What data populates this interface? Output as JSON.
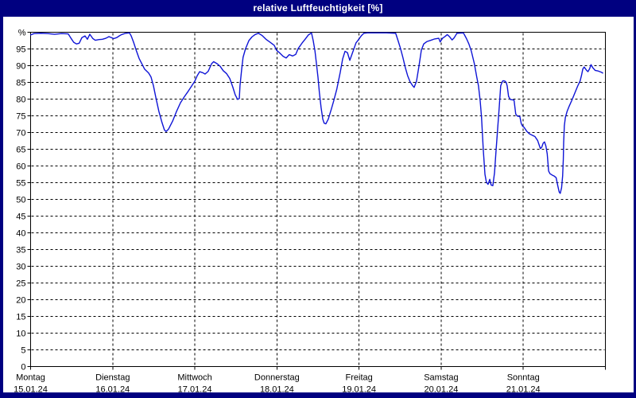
{
  "window": {
    "title": "relative Luftfeuchtigkeit [%]"
  },
  "colors": {
    "frame": "#000080",
    "titlebar_text": "#ffffff",
    "plot_background": "#ffffff",
    "axis": "#000000",
    "grid": "#000000",
    "series_line": "#0e14d6"
  },
  "chart_data": {
    "type": "line",
    "title": "relative Luftfeuchtigkeit [%]",
    "ylabel": "%",
    "ylim": [
      0,
      100
    ],
    "y_tick_step": 5,
    "y_top_label": "%",
    "y_tick_labels": [
      "%",
      "95",
      "90",
      "85",
      "80",
      "75",
      "70",
      "65",
      "60",
      "55",
      "50",
      "45",
      "40",
      "35",
      "30",
      "25",
      "20",
      "15",
      "10",
      "5",
      "0"
    ],
    "grid": "dashed",
    "legend_position": "none",
    "x_axis": {
      "unit": "hours",
      "range_hours": [
        0,
        168
      ],
      "day_ticks": [
        {
          "name": "Montag",
          "date": "15.01.24"
        },
        {
          "name": "Dienstag",
          "date": "16.01.24"
        },
        {
          "name": "Mittwoch",
          "date": "17.01.24"
        },
        {
          "name": "Donnerstag",
          "date": "18.01.24"
        },
        {
          "name": "Freitag",
          "date": "19.01.24"
        },
        {
          "name": "Samstag",
          "date": "20.01.24"
        },
        {
          "name": "Sonntag",
          "date": "21.01.24"
        }
      ]
    },
    "series": [
      {
        "name": "relative Luftfeuchtigkeit",
        "unit": "%",
        "color": "#0e14d6",
        "points_hours_value": [
          [
            0,
            99.2
          ],
          [
            1,
            99.6
          ],
          [
            3,
            99.7
          ],
          [
            5,
            99.6
          ],
          [
            7,
            99.4
          ],
          [
            9,
            99.6
          ],
          [
            11,
            99.5
          ],
          [
            11.8,
            98.2
          ],
          [
            12.6,
            97
          ],
          [
            13.4,
            96.5
          ],
          [
            14.2,
            96.7
          ],
          [
            15,
            98.4
          ],
          [
            15.9,
            98.9
          ],
          [
            16.6,
            97.9
          ],
          [
            17.3,
            99.4
          ],
          [
            18.2,
            98.1
          ],
          [
            18.9,
            97.6
          ],
          [
            20,
            97.8
          ],
          [
            21,
            97.9
          ],
          [
            22,
            98.2
          ],
          [
            22.9,
            98.7
          ],
          [
            23.6,
            98.4
          ],
          [
            24.3,
            98.1
          ],
          [
            25.2,
            98.4
          ],
          [
            25.9,
            98.9
          ],
          [
            26.6,
            99.3
          ],
          [
            27.8,
            99.7
          ],
          [
            28.9,
            99.8
          ],
          [
            29.4,
            98.9
          ],
          [
            30.1,
            97
          ],
          [
            30.8,
            94.8
          ],
          [
            31.7,
            92.2
          ],
          [
            32.4,
            90.8
          ],
          [
            33.3,
            89
          ],
          [
            34.5,
            87.8
          ],
          [
            35.2,
            86.6
          ],
          [
            35.9,
            84
          ],
          [
            36.6,
            80.5
          ],
          [
            37.5,
            76.3
          ],
          [
            38.4,
            73
          ],
          [
            39.1,
            70.8
          ],
          [
            39.6,
            70.3
          ],
          [
            40.3,
            71
          ],
          [
            41.5,
            73.4
          ],
          [
            42.6,
            76.2
          ],
          [
            43.8,
            78.9
          ],
          [
            45,
            80.8
          ],
          [
            46.1,
            82.4
          ],
          [
            47,
            83.8
          ],
          [
            48,
            85.4
          ],
          [
            48.7,
            87
          ],
          [
            49.4,
            88.2
          ],
          [
            50.3,
            87.9
          ],
          [
            51,
            87.5
          ],
          [
            51.9,
            88.3
          ],
          [
            52.9,
            90.6
          ],
          [
            53.5,
            91.2
          ],
          [
            54.5,
            90.6
          ],
          [
            55.4,
            89.8
          ],
          [
            56.3,
            88.5
          ],
          [
            57.3,
            87.6
          ],
          [
            58.2,
            86.2
          ],
          [
            59.1,
            83.6
          ],
          [
            59.8,
            81.3
          ],
          [
            60.5,
            79.9
          ],
          [
            61,
            80.2
          ],
          [
            61.2,
            84
          ],
          [
            61.7,
            89
          ],
          [
            62.1,
            92.5
          ],
          [
            62.8,
            95
          ],
          [
            63.8,
            97.5
          ],
          [
            64.7,
            98.6
          ],
          [
            65.6,
            99.3
          ],
          [
            66.6,
            99.7
          ],
          [
            67.7,
            99
          ],
          [
            68.9,
            97.8
          ],
          [
            70,
            97
          ],
          [
            71.2,
            96.1
          ],
          [
            71.9,
            94.6
          ],
          [
            72.8,
            93.8
          ],
          [
            73.8,
            92.8
          ],
          [
            74.7,
            92.3
          ],
          [
            75.6,
            93.3
          ],
          [
            76.6,
            92.9
          ],
          [
            77.5,
            93.4
          ],
          [
            78.2,
            95.1
          ],
          [
            79.3,
            96.7
          ],
          [
            80.3,
            98
          ],
          [
            81.2,
            99.2
          ],
          [
            82.1,
            99.8
          ],
          [
            82.6,
            97.5
          ],
          [
            83.1,
            94.5
          ],
          [
            83.5,
            91
          ],
          [
            84,
            86.5
          ],
          [
            84.4,
            82
          ],
          [
            84.9,
            77.5
          ],
          [
            85.4,
            74
          ],
          [
            85.8,
            72.8
          ],
          [
            86.3,
            72.6
          ],
          [
            87,
            74
          ],
          [
            87.9,
            77
          ],
          [
            88.6,
            79.5
          ],
          [
            89.5,
            83
          ],
          [
            90.5,
            88
          ],
          [
            91.2,
            92
          ],
          [
            91.9,
            94.3
          ],
          [
            92.6,
            93.9
          ],
          [
            93.3,
            91.6
          ],
          [
            94.2,
            94.2
          ],
          [
            95.1,
            96.8
          ],
          [
            96,
            98
          ],
          [
            96.7,
            99
          ],
          [
            97.4,
            99.7
          ],
          [
            98.4,
            99.8
          ],
          [
            101,
            99.8
          ],
          [
            104,
            99.8
          ],
          [
            106.7,
            99.7
          ],
          [
            107.4,
            97.5
          ],
          [
            108.1,
            95.2
          ],
          [
            108.8,
            92.5
          ],
          [
            109.5,
            89.5
          ],
          [
            110.2,
            87
          ],
          [
            110.9,
            85.2
          ],
          [
            111.6,
            84.1
          ],
          [
            112.1,
            83.5
          ],
          [
            112.8,
            85.4
          ],
          [
            113.5,
            89.8
          ],
          [
            114.2,
            94.6
          ],
          [
            114.9,
            96.5
          ],
          [
            115.8,
            97.2
          ],
          [
            117,
            97.6
          ],
          [
            118.1,
            98
          ],
          [
            119.3,
            98.2
          ],
          [
            119.7,
            97.1
          ],
          [
            120.4,
            98.2
          ],
          [
            121.1,
            98.7
          ],
          [
            121.8,
            99.3
          ],
          [
            122.5,
            98.6
          ],
          [
            123.2,
            97.7
          ],
          [
            123.7,
            98.2
          ],
          [
            124.2,
            99
          ],
          [
            124.6,
            99.7
          ],
          [
            126.5,
            99.8
          ],
          [
            127.4,
            98.1
          ],
          [
            128.1,
            96.5
          ],
          [
            128.8,
            94.4
          ],
          [
            129.7,
            90.6
          ],
          [
            130.4,
            86.6
          ],
          [
            130.9,
            84
          ],
          [
            131.4,
            79.5
          ],
          [
            131.8,
            74.5
          ],
          [
            132.3,
            65
          ],
          [
            132.8,
            57.5
          ],
          [
            133.2,
            55.2
          ],
          [
            133.7,
            54.5
          ],
          [
            134.2,
            56
          ],
          [
            134.6,
            54.3
          ],
          [
            135.1,
            54.1
          ],
          [
            135.6,
            58
          ],
          [
            136,
            64
          ],
          [
            136.5,
            71
          ],
          [
            137,
            78
          ],
          [
            137.4,
            84
          ],
          [
            137.9,
            85.3
          ],
          [
            138.1,
            85.5
          ],
          [
            138.6,
            85.4
          ],
          [
            139,
            85
          ],
          [
            139.3,
            83.9
          ],
          [
            139.7,
            80.8
          ],
          [
            140.2,
            79.9
          ],
          [
            141.3,
            79.7
          ],
          [
            141.8,
            75.5
          ],
          [
            142.3,
            74.9
          ],
          [
            143,
            74.8
          ],
          [
            143.4,
            72.7
          ],
          [
            143.8,
            71.9
          ],
          [
            144.2,
            71.6
          ],
          [
            145,
            70.4
          ],
          [
            145.8,
            69.6
          ],
          [
            146.6,
            69.2
          ],
          [
            147.4,
            68.8
          ],
          [
            148.2,
            67.6
          ],
          [
            148.6,
            66.4
          ],
          [
            149,
            65.2
          ],
          [
            149.4,
            65.6
          ],
          [
            149.8,
            66.8
          ],
          [
            150.2,
            67.2
          ],
          [
            150.6,
            66
          ],
          [
            151,
            63.6
          ],
          [
            151.4,
            58.5
          ],
          [
            151.8,
            57.7
          ],
          [
            152.4,
            57.3
          ],
          [
            153,
            57
          ],
          [
            153.6,
            56.5
          ],
          [
            154.1,
            54
          ],
          [
            154.5,
            52.2
          ],
          [
            154.8,
            51.8
          ],
          [
            155.2,
            53.5
          ],
          [
            155.5,
            57
          ],
          [
            155.7,
            62
          ],
          [
            155.8,
            67
          ],
          [
            156,
            72
          ],
          [
            156.3,
            74.5
          ],
          [
            156.8,
            76.3
          ],
          [
            157.3,
            77.6
          ],
          [
            158.3,
            79.9
          ],
          [
            159.1,
            81.9
          ],
          [
            159.9,
            83.9
          ],
          [
            160.6,
            85.4
          ],
          [
            161,
            87
          ],
          [
            161.4,
            89
          ],
          [
            161.8,
            89.6
          ],
          [
            162.5,
            88.6
          ],
          [
            162.9,
            88.2
          ],
          [
            163.4,
            89.1
          ],
          [
            163.8,
            90.3
          ],
          [
            164.3,
            89.4
          ],
          [
            165,
            88.6
          ],
          [
            165.9,
            88.4
          ],
          [
            166.9,
            88
          ],
          [
            167.2,
            87.8
          ]
        ]
      }
    ]
  }
}
